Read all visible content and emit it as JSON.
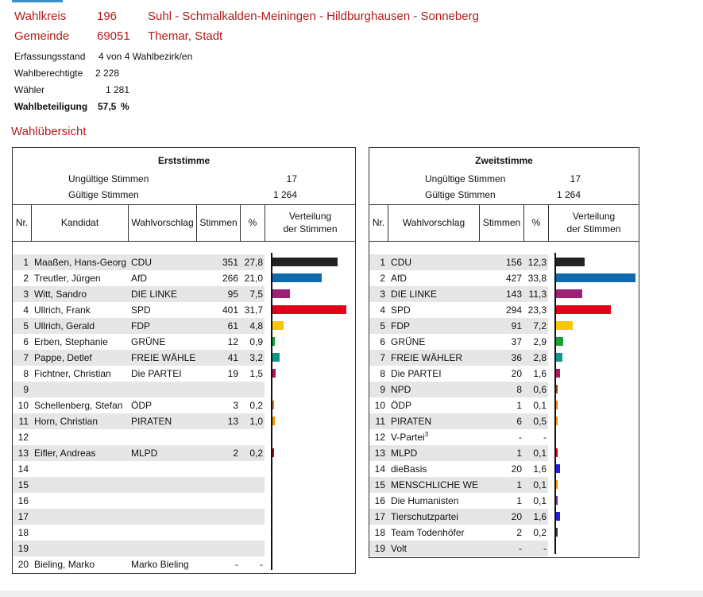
{
  "header": {
    "wahlkreis_label": "Wahlkreis",
    "wahlkreis_nr": "196",
    "wahlkreis_name": "Suhl - Schmalkalden-Meiningen - Hildburghausen - Sonneberg",
    "gemeinde_label": "Gemeinde",
    "gemeinde_nr": "69051",
    "gemeinde_name": "Themar, Stadt"
  },
  "info": {
    "erfassung_label": "Erfassungsstand",
    "erfassung_value": "4 von 4 Wahlbezirk/en",
    "berechtigte_label": "Wahlberechtigte",
    "berechtigte_value": "2 228",
    "waehler_label": "Wähler",
    "waehler_value": "1 281",
    "beteiligung_label": "Wahlbeteiligung",
    "beteiligung_value": "57,5",
    "beteiligung_unit": "%"
  },
  "section_title": "Wahlübersicht",
  "erststimme": {
    "title": "Erststimme",
    "invalid_label": "Ungültige Stimmen",
    "invalid_value": "17",
    "valid_label": "Gültige Stimmen",
    "valid_value": "1 264",
    "col_nr": "Nr.",
    "col_kandidat": "Kandidat",
    "col_vorschlag": "Wahlvorschlag",
    "col_stimmen": "Stimmen",
    "col_pct": "%",
    "col_verteilung_1": "Verteilung",
    "col_verteilung_2": "der Stimmen",
    "rows": [
      {
        "nr": "1",
        "name": "Maaßen, Hans-Georg",
        "party": "CDU",
        "votes": "351",
        "pct": "27,8",
        "share": 27.8,
        "color": "#222222"
      },
      {
        "nr": "2",
        "name": "Treutler, Jürgen",
        "party": "AfD",
        "votes": "266",
        "pct": "21,0",
        "share": 21.0,
        "color": "#0e6aac"
      },
      {
        "nr": "3",
        "name": "Witt, Sandro",
        "party": "DIE LINKE",
        "votes": "95",
        "pct": "7,5",
        "share": 7.5,
        "color": "#9c2177"
      },
      {
        "nr": "4",
        "name": "Ullrich, Frank",
        "party": "SPD",
        "votes": "401",
        "pct": "31,7",
        "share": 31.7,
        "color": "#e3001b"
      },
      {
        "nr": "5",
        "name": "Ullrich, Gerald",
        "party": "FDP",
        "votes": "61",
        "pct": "4,8",
        "share": 4.8,
        "color": "#f5c800"
      },
      {
        "nr": "6",
        "name": "Erben, Stephanie",
        "party": "GRÜNE",
        "votes": "12",
        "pct": "0,9",
        "share": 0.9,
        "color": "#1aa037"
      },
      {
        "nr": "7",
        "name": "Pappe, Detlef",
        "party": "FREIE WÄHLER",
        "votes": "41",
        "pct": "3,2",
        "share": 3.2,
        "color": "#13968a"
      },
      {
        "nr": "8",
        "name": "Fichtner, Christian",
        "party": "Die PARTEI",
        "votes": "19",
        "pct": "1,5",
        "share": 1.5,
        "color": "#b5175e"
      },
      {
        "nr": "9",
        "name": "",
        "party": "",
        "votes": "",
        "pct": "",
        "share": 0,
        "color": "#000000"
      },
      {
        "nr": "10",
        "name": "Schellenberg, Stefan",
        "party": "ÖDP",
        "votes": "3",
        "pct": "0,2",
        "share": 0.2,
        "color": "#e87722"
      },
      {
        "nr": "11",
        "name": "Horn, Christian",
        "party": "PIRATEN",
        "votes": "13",
        "pct": "1,0",
        "share": 1.0,
        "color": "#f39200"
      },
      {
        "nr": "12",
        "name": "",
        "party": "",
        "votes": "",
        "pct": "",
        "share": 0,
        "color": "#000000"
      },
      {
        "nr": "13",
        "name": "Eifler, Andreas",
        "party": "MLPD",
        "votes": "2",
        "pct": "0,2",
        "share": 0.2,
        "color": "#cc0000"
      },
      {
        "nr": "14",
        "name": "",
        "party": "",
        "votes": "",
        "pct": "",
        "share": 0,
        "color": "#000000"
      },
      {
        "nr": "15",
        "name": "",
        "party": "",
        "votes": "",
        "pct": "",
        "share": 0,
        "color": "#000000"
      },
      {
        "nr": "16",
        "name": "",
        "party": "",
        "votes": "",
        "pct": "",
        "share": 0,
        "color": "#000000"
      },
      {
        "nr": "17",
        "name": "",
        "party": "",
        "votes": "",
        "pct": "",
        "share": 0,
        "color": "#000000"
      },
      {
        "nr": "18",
        "name": "",
        "party": "",
        "votes": "",
        "pct": "",
        "share": 0,
        "color": "#000000"
      },
      {
        "nr": "19",
        "name": "",
        "party": "",
        "votes": "",
        "pct": "",
        "share": 0,
        "color": "#000000"
      },
      {
        "nr": "20",
        "name": "Bieling, Marko",
        "party": "Marko Bieling",
        "votes": "-",
        "pct": "-",
        "share": 0,
        "color": "#000000"
      }
    ]
  },
  "zweitstimme": {
    "title": "Zweitstimme",
    "invalid_label": "Ungültige Stimmen",
    "invalid_value": "17",
    "valid_label": "Gültige Stimmen",
    "valid_value": "1 264",
    "col_nr": "Nr.",
    "col_vorschlag": "Wahlvorschlag",
    "col_stimmen": "Stimmen",
    "col_pct": "%",
    "col_verteilung_1": "Verteilung",
    "col_verteilung_2": "der Stimmen",
    "footnote_mark": "3",
    "rows": [
      {
        "nr": "1",
        "party": "CDU",
        "votes": "156",
        "pct": "12,3",
        "share": 12.3,
        "color": "#222222"
      },
      {
        "nr": "2",
        "party": "AfD",
        "votes": "427",
        "pct": "33,8",
        "share": 33.8,
        "color": "#0e6aac"
      },
      {
        "nr": "3",
        "party": "DIE LINKE",
        "votes": "143",
        "pct": "11,3",
        "share": 11.3,
        "color": "#9c2177"
      },
      {
        "nr": "4",
        "party": "SPD",
        "votes": "294",
        "pct": "23,3",
        "share": 23.3,
        "color": "#e3001b"
      },
      {
        "nr": "5",
        "party": "FDP",
        "votes": "91",
        "pct": "7,2",
        "share": 7.2,
        "color": "#f5c800"
      },
      {
        "nr": "6",
        "party": "GRÜNE",
        "votes": "37",
        "pct": "2,9",
        "share": 2.9,
        "color": "#1aa037"
      },
      {
        "nr": "7",
        "party": "FREIE WÄHLER",
        "votes": "36",
        "pct": "2,8",
        "share": 2.8,
        "color": "#13968a"
      },
      {
        "nr": "8",
        "party": "Die PARTEI",
        "votes": "20",
        "pct": "1,6",
        "share": 1.6,
        "color": "#b5175e"
      },
      {
        "nr": "9",
        "party": "NPD",
        "votes": "8",
        "pct": "0,6",
        "share": 0.6,
        "color": "#8b4513"
      },
      {
        "nr": "10",
        "party": "ÖDP",
        "votes": "1",
        "pct": "0,1",
        "share": 0.1,
        "color": "#e87722"
      },
      {
        "nr": "11",
        "party": "PIRATEN",
        "votes": "6",
        "pct": "0,5",
        "share": 0.5,
        "color": "#f39200"
      },
      {
        "nr": "12",
        "party": "V-Partei",
        "votes": "-",
        "pct": "-",
        "share": 0,
        "color": "#000000",
        "footnote": true
      },
      {
        "nr": "13",
        "party": "MLPD",
        "votes": "1",
        "pct": "0,1",
        "share": 0.1,
        "color": "#cc0000"
      },
      {
        "nr": "14",
        "party": "dieBasis",
        "votes": "20",
        "pct": "1,6",
        "share": 1.6,
        "color": "#1f1fd8"
      },
      {
        "nr": "15",
        "party": "MENSCHLICHE WELT",
        "votes": "1",
        "pct": "0,1",
        "share": 0.1,
        "color": "#f39200"
      },
      {
        "nr": "16",
        "party": "Die Humanisten",
        "votes": "1",
        "pct": "0,1",
        "share": 0.1,
        "color": "#6b2c91"
      },
      {
        "nr": "17",
        "party": "Tierschutzpartei",
        "votes": "20",
        "pct": "1,6",
        "share": 1.6,
        "color": "#1f1fd8"
      },
      {
        "nr": "18",
        "party": "Team Todenhöfer",
        "votes": "2",
        "pct": "0,2",
        "share": 0.2,
        "color": "#333333"
      },
      {
        "nr": "19",
        "party": "Volt",
        "votes": "-",
        "pct": "-",
        "share": 0,
        "color": "#000000"
      }
    ]
  }
}
